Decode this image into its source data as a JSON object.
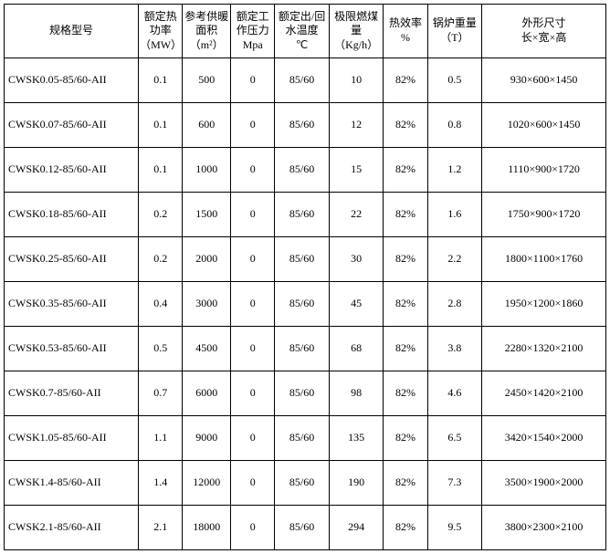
{
  "table": {
    "columns": [
      {
        "key": "model",
        "label": "规格型号",
        "cls": "col-model"
      },
      {
        "key": "power",
        "label": "额定热功率\n（MW）",
        "cls": "col-power"
      },
      {
        "key": "area",
        "label": "参考供暖面积\n（m²）",
        "cls": "col-area"
      },
      {
        "key": "press",
        "label": "额定工作压力\nMpa",
        "cls": "col-press"
      },
      {
        "key": "temp",
        "label": "额定出/回水温度\n℃",
        "cls": "col-temp"
      },
      {
        "key": "coal",
        "label": "极限燃煤量\n（Kg/h）",
        "cls": "col-coal"
      },
      {
        "key": "eff",
        "label": "热效率\n%",
        "cls": "col-eff"
      },
      {
        "key": "wt",
        "label": "锅炉重量\n（T）",
        "cls": "col-wt"
      },
      {
        "key": "dim",
        "label": "外形尺寸\n长×宽×高",
        "cls": "col-dim"
      }
    ],
    "rows": [
      {
        "model": "CWSK0.05-85/60-AII",
        "power": "0.1",
        "area": "500",
        "press": "0",
        "temp": "85/60",
        "coal": "10",
        "eff": "82%",
        "wt": "0.5",
        "dim": "930×600×1450"
      },
      {
        "model": "CWSK0.07-85/60-AII",
        "power": "0.1",
        "area": "600",
        "press": "0",
        "temp": "85/60",
        "coal": "12",
        "eff": "82%",
        "wt": "0.8",
        "dim": "1020×600×1450"
      },
      {
        "model": "CWSK0.12-85/60-AII",
        "power": "0.1",
        "area": "1000",
        "press": "0",
        "temp": "85/60",
        "coal": "15",
        "eff": "82%",
        "wt": "1.2",
        "dim": "1110×900×1720"
      },
      {
        "model": "CWSK0.18-85/60-AII",
        "power": "0.2",
        "area": "1500",
        "press": "0",
        "temp": "85/60",
        "coal": "22",
        "eff": "82%",
        "wt": "1.6",
        "dim": "1750×900×1720"
      },
      {
        "model": "CWSK0.25-85/60-AII",
        "power": "0.2",
        "area": "2000",
        "press": "0",
        "temp": "85/60",
        "coal": "30",
        "eff": "82%",
        "wt": "2.2",
        "dim": "1800×1100×1760"
      },
      {
        "model": "CWSK0.35-85/60-AII",
        "power": "0.4",
        "area": "3000",
        "press": "0",
        "temp": "85/60",
        "coal": "45",
        "eff": "82%",
        "wt": "2.8",
        "dim": "1950×1200×1860"
      },
      {
        "model": "CWSK0.53-85/60-AII",
        "power": "0.5",
        "area": "4500",
        "press": "0",
        "temp": "85/60",
        "coal": "68",
        "eff": "82%",
        "wt": "3.8",
        "dim": "2280×1320×2100"
      },
      {
        "model": "CWSK0.7-85/60-AII",
        "power": "0.7",
        "area": "6000",
        "press": "0",
        "temp": "85/60",
        "coal": "98",
        "eff": "82%",
        "wt": "4.6",
        "dim": "2450×1420×2100"
      },
      {
        "model": "CWSK1.05-85/60-AII",
        "power": "1.1",
        "area": "9000",
        "press": "0",
        "temp": "85/60",
        "coal": "135",
        "eff": "82%",
        "wt": "6.5",
        "dim": "3420×1540×2000"
      },
      {
        "model": "CWSK1.4-85/60-AII",
        "power": "1.4",
        "area": "12000",
        "press": "0",
        "temp": "85/60",
        "coal": "190",
        "eff": "82%",
        "wt": "7.3",
        "dim": "3500×1900×2000"
      },
      {
        "model": "CWSK2.1-85/60-AII",
        "power": "2.1",
        "area": "18000",
        "press": "0",
        "temp": "85/60",
        "coal": "294",
        "eff": "82%",
        "wt": "9.5",
        "dim": "3800×2300×2100"
      }
    ]
  }
}
